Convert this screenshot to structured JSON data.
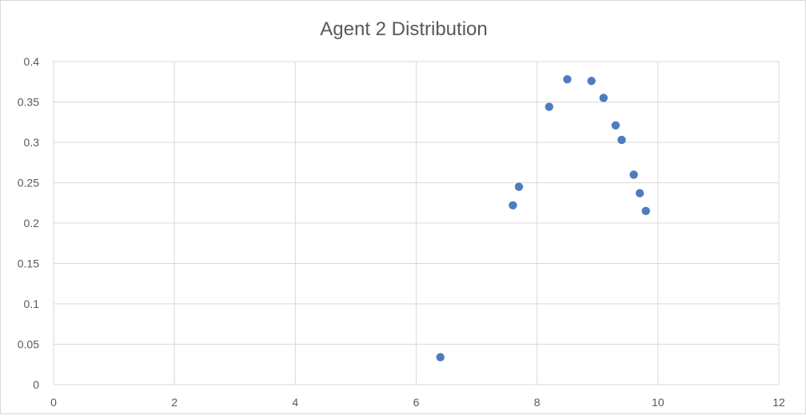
{
  "chart_data": {
    "type": "scatter",
    "title": "Agent 2 Distribution",
    "xlabel": "",
    "ylabel": "",
    "xlim": [
      0,
      12
    ],
    "ylim": [
      0,
      0.4
    ],
    "x_ticks": [
      "0",
      "2",
      "4",
      "6",
      "8",
      "10",
      "12"
    ],
    "y_ticks": [
      "0",
      "0.05",
      "0.1",
      "0.15",
      "0.2",
      "0.25",
      "0.3",
      "0.35",
      "0.4"
    ],
    "grid": true,
    "marker_color": "#4F7BBF",
    "gridline_color": "#d9d9d9",
    "series": [
      {
        "points": [
          {
            "x": 6.4,
            "y": 0.034
          },
          {
            "x": 7.6,
            "y": 0.222
          },
          {
            "x": 7.7,
            "y": 0.245
          },
          {
            "x": 8.2,
            "y": 0.344
          },
          {
            "x": 8.5,
            "y": 0.378
          },
          {
            "x": 8.9,
            "y": 0.376
          },
          {
            "x": 9.1,
            "y": 0.355
          },
          {
            "x": 9.3,
            "y": 0.321
          },
          {
            "x": 9.4,
            "y": 0.303
          },
          {
            "x": 9.6,
            "y": 0.26
          },
          {
            "x": 9.7,
            "y": 0.237
          },
          {
            "x": 9.8,
            "y": 0.215
          }
        ]
      }
    ]
  }
}
